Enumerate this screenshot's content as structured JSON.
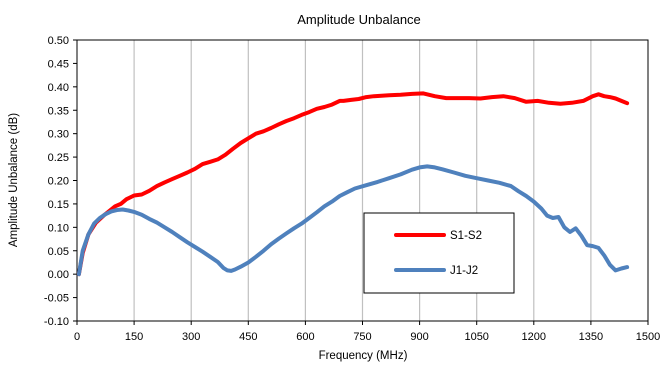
{
  "chart_data": {
    "type": "line",
    "title": "Amplitude Unbalance",
    "xlabel": "Frequency (MHz)",
    "ylabel": "Amplitude Unbalance (dB)",
    "xlim": [
      0,
      1500
    ],
    "ylim": [
      -0.1,
      0.5
    ],
    "xticks": [
      0,
      150,
      300,
      450,
      600,
      750,
      900,
      1050,
      1200,
      1350,
      1500
    ],
    "yticks": [
      -0.1,
      -0.05,
      0.0,
      0.05,
      0.1,
      0.15,
      0.2,
      0.25,
      0.3,
      0.35,
      0.4,
      0.45,
      0.5
    ],
    "xtick_labels": [
      "0",
      "150",
      "300",
      "450",
      "600",
      "750",
      "900",
      "1050",
      "1200",
      "1350",
      "1500"
    ],
    "ytick_labels": [
      "-0.10",
      "-0.05",
      "0.00",
      "0.05",
      "0.10",
      "0.15",
      "0.20",
      "0.25",
      "0.30",
      "0.35",
      "0.40",
      "0.45",
      "0.50"
    ],
    "grid": "vertical",
    "legend_position": "center-right",
    "series": [
      {
        "name": "S1-S2",
        "color": "#ff0000",
        "x": [
          5,
          15,
          30,
          50,
          70,
          85,
          100,
          115,
          130,
          150,
          170,
          190,
          210,
          230,
          250,
          270,
          290,
          310,
          330,
          350,
          370,
          390,
          410,
          430,
          450,
          470,
          490,
          510,
          530,
          550,
          570,
          590,
          610,
          630,
          650,
          670,
          690,
          700,
          720,
          740,
          760,
          780,
          800,
          820,
          850,
          880,
          910,
          940,
          970,
          1000,
          1030,
          1060,
          1090,
          1120,
          1150,
          1180,
          1210,
          1240,
          1270,
          1300,
          1330,
          1355,
          1370,
          1385,
          1400,
          1415,
          1430,
          1445
        ],
        "y": [
          0.0,
          0.045,
          0.085,
          0.11,
          0.125,
          0.135,
          0.145,
          0.15,
          0.16,
          0.168,
          0.17,
          0.178,
          0.188,
          0.196,
          0.203,
          0.21,
          0.217,
          0.225,
          0.235,
          0.24,
          0.245,
          0.255,
          0.268,
          0.28,
          0.29,
          0.3,
          0.305,
          0.312,
          0.32,
          0.327,
          0.333,
          0.34,
          0.346,
          0.353,
          0.357,
          0.362,
          0.37,
          0.37,
          0.372,
          0.374,
          0.378,
          0.38,
          0.381,
          0.382,
          0.383,
          0.385,
          0.386,
          0.38,
          0.376,
          0.376,
          0.376,
          0.375,
          0.378,
          0.38,
          0.376,
          0.368,
          0.37,
          0.366,
          0.364,
          0.366,
          0.37,
          0.38,
          0.384,
          0.38,
          0.378,
          0.375,
          0.37,
          0.365
        ]
      },
      {
        "name": "J1-J2",
        "color": "#4f81bd",
        "x": [
          5,
          15,
          30,
          45,
          60,
          75,
          90,
          105,
          120,
          135,
          150,
          170,
          190,
          210,
          230,
          250,
          270,
          290,
          310,
          330,
          350,
          370,
          385,
          395,
          405,
          415,
          430,
          450,
          470,
          490,
          510,
          530,
          550,
          570,
          590,
          610,
          630,
          650,
          670,
          690,
          710,
          730,
          760,
          790,
          820,
          850,
          880,
          900,
          920,
          940,
          960,
          990,
          1020,
          1050,
          1080,
          1110,
          1140,
          1160,
          1180,
          1200,
          1220,
          1235,
          1250,
          1265,
          1280,
          1295,
          1310,
          1325,
          1340,
          1355,
          1370,
          1385,
          1400,
          1415,
          1430,
          1445
        ],
        "y": [
          0.0,
          0.05,
          0.085,
          0.108,
          0.12,
          0.128,
          0.134,
          0.137,
          0.138,
          0.136,
          0.133,
          0.127,
          0.118,
          0.11,
          0.1,
          0.09,
          0.079,
          0.068,
          0.058,
          0.048,
          0.037,
          0.026,
          0.013,
          0.008,
          0.007,
          0.01,
          0.016,
          0.025,
          0.037,
          0.05,
          0.064,
          0.076,
          0.087,
          0.098,
          0.108,
          0.12,
          0.132,
          0.145,
          0.155,
          0.167,
          0.175,
          0.183,
          0.19,
          0.197,
          0.205,
          0.213,
          0.223,
          0.228,
          0.23,
          0.228,
          0.224,
          0.217,
          0.21,
          0.205,
          0.2,
          0.195,
          0.188,
          0.177,
          0.167,
          0.155,
          0.14,
          0.125,
          0.12,
          0.122,
          0.1,
          0.09,
          0.098,
          0.082,
          0.062,
          0.06,
          0.056,
          0.04,
          0.02,
          0.008,
          0.012,
          0.015
        ]
      }
    ]
  }
}
